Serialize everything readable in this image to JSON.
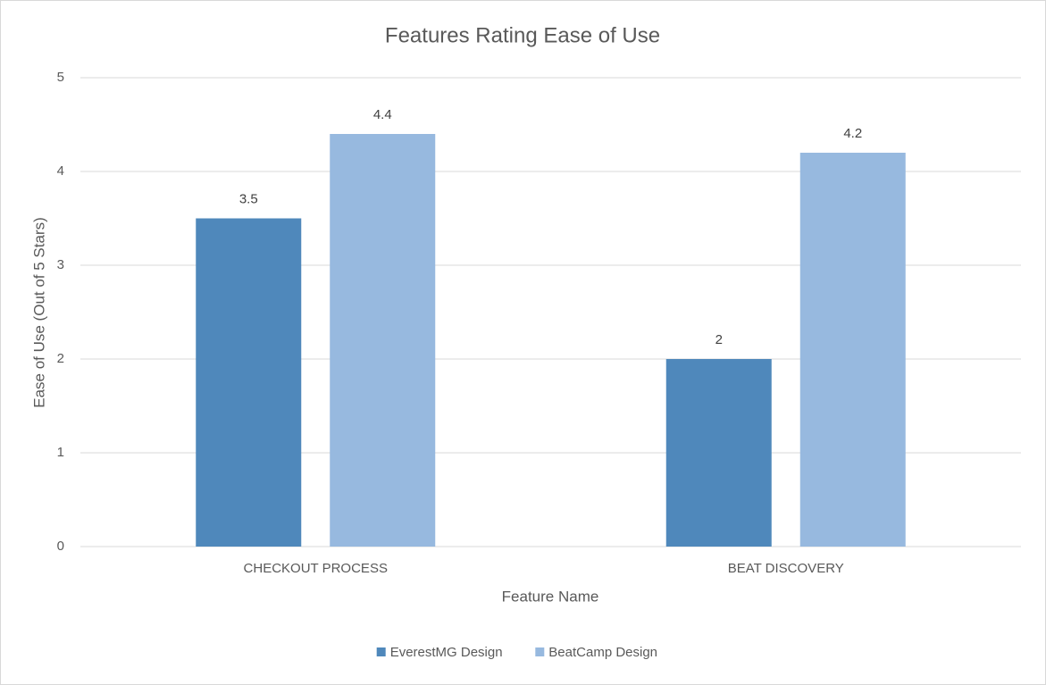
{
  "chart_data": {
    "type": "bar",
    "title": "Features Rating Ease of Use",
    "x_label": "Feature Name",
    "y_label": "Ease of Use (Out of 5 Stars)",
    "categories": [
      "CHECKOUT PROCESS",
      "BEAT DISCOVERY"
    ],
    "series": [
      {
        "name": "EverestMG Design",
        "color": "#4f88bb",
        "values": [
          3.5,
          2
        ]
      },
      {
        "name": "BeatCamp Design",
        "color": "#97b9df",
        "values": [
          4.4,
          4.2
        ]
      }
    ],
    "ylim": [
      0,
      5
    ],
    "yticks": [
      0,
      1,
      2,
      3,
      4,
      5
    ],
    "grid": true,
    "legend": "bottom"
  }
}
